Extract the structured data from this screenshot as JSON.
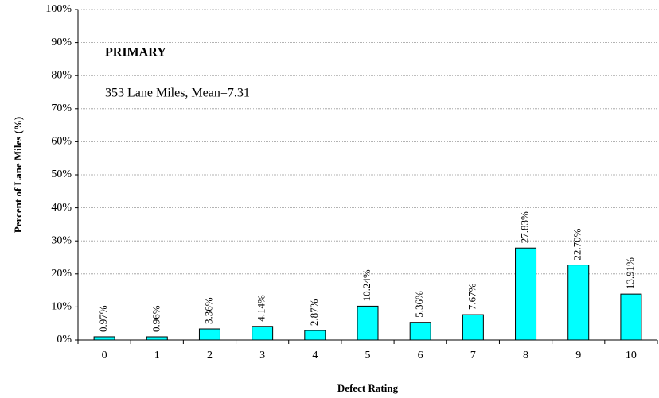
{
  "chart_data": {
    "type": "bar",
    "xlabel": "Defect Rating",
    "ylabel": "Percent of Lane Miles (%)",
    "annotations": [
      {
        "text": "PRIMARY",
        "color": "#e00000",
        "bold": true
      },
      {
        "text": "353 Lane Miles, Mean=7.31",
        "color": "#000000",
        "bold": false
      }
    ],
    "categories": [
      "0",
      "1",
      "2",
      "3",
      "4",
      "5",
      "6",
      "7",
      "8",
      "9",
      "10"
    ],
    "values": [
      0.97,
      0.96,
      3.36,
      4.14,
      2.87,
      10.24,
      5.36,
      7.67,
      27.83,
      22.7,
      13.91
    ],
    "value_labels": [
      "0.97%",
      "0.96%",
      "3.36%",
      "4.14%",
      "2.87%",
      "10.24%",
      "5.36%",
      "7.67%",
      "27.83%",
      "22.70%",
      "13.91%"
    ],
    "color": "#00ffff",
    "ylim": [
      0,
      100
    ],
    "yticks": [
      {
        "value": 0,
        "label": "0%"
      },
      {
        "value": 10,
        "label": "10%"
      },
      {
        "value": 20,
        "label": "20%"
      },
      {
        "value": 30,
        "label": "30%"
      },
      {
        "value": 40,
        "label": "40%"
      },
      {
        "value": 50,
        "label": "50%"
      },
      {
        "value": 60,
        "label": "60%"
      },
      {
        "value": 70,
        "label": "70%"
      },
      {
        "value": 80,
        "label": "80%"
      },
      {
        "value": 90,
        "label": "90%"
      },
      {
        "value": 100,
        "label": "100%"
      }
    ],
    "grid": true
  }
}
